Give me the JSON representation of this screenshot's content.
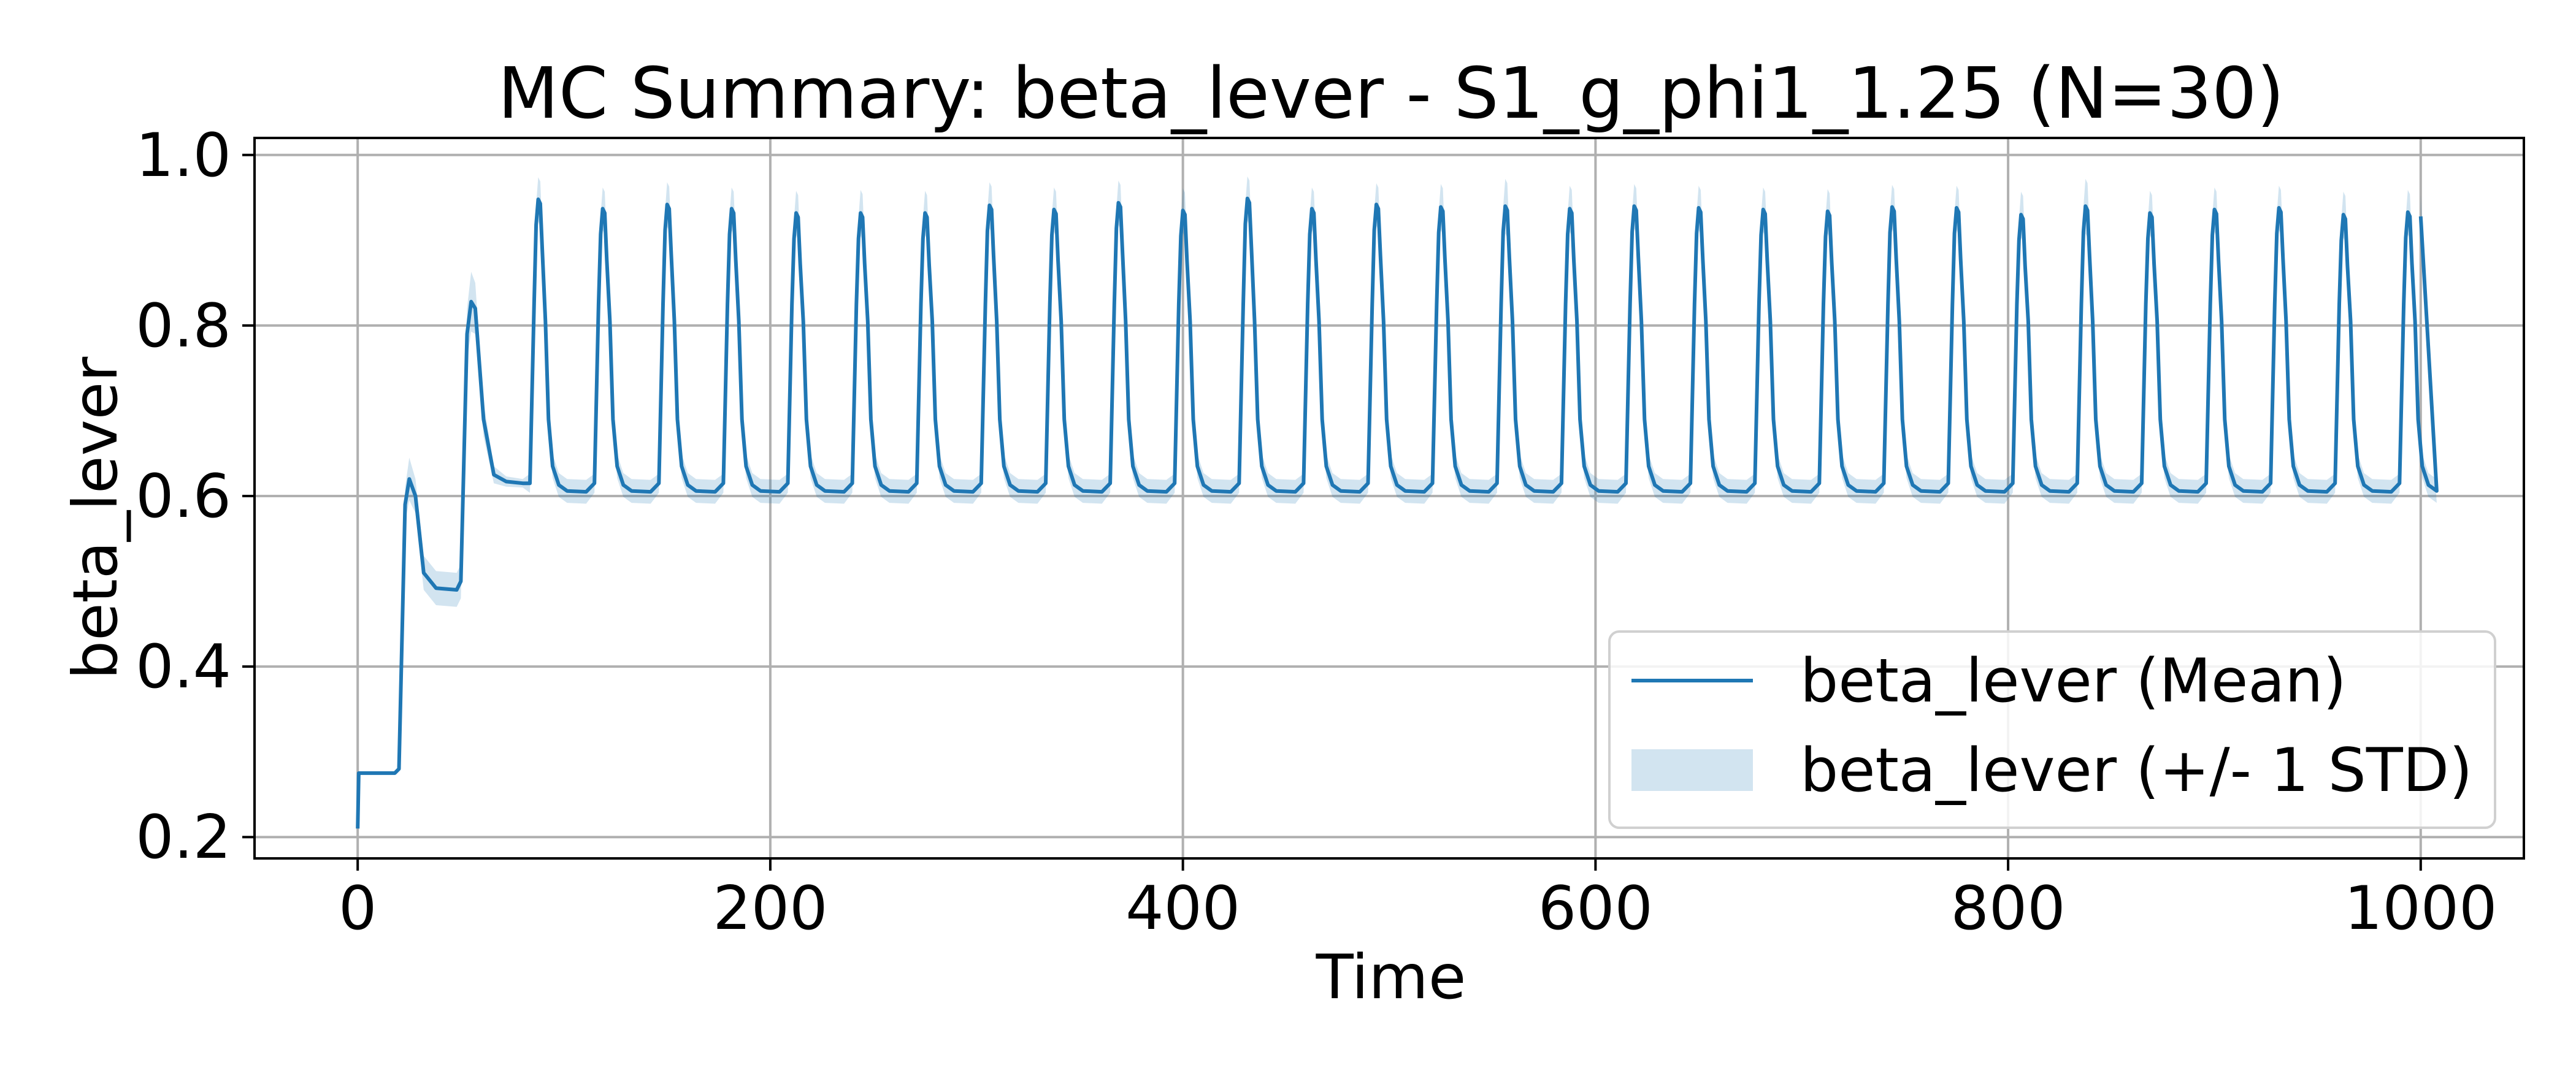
{
  "chart_data": {
    "type": "line",
    "title": "MC Summary: beta_lever - S1_g_phi1_1.25 (N=30)",
    "xlabel": "Time",
    "ylabel": "beta_lever",
    "xlim": [
      -50,
      1050
    ],
    "ylim": [
      0.175,
      1.02
    ],
    "x_ticks": [
      0,
      200,
      400,
      600,
      800,
      1000
    ],
    "y_ticks": [
      0.2,
      0.4,
      0.6,
      0.8,
      1.0
    ],
    "x_tick_labels": [
      "0",
      "200",
      "400",
      "600",
      "800",
      "1000"
    ],
    "y_tick_labels": [
      "0.2",
      "0.4",
      "0.6",
      "0.8",
      "1.0"
    ],
    "grid": true,
    "legend_position": "lower-right",
    "colors": {
      "mean": "#1f77b4",
      "band": "#1f77b4",
      "band_opacity": 0.2
    },
    "series": [
      {
        "name": "beta_lever (Mean)",
        "kind": "line"
      },
      {
        "name": "beta_lever (+/- 1 STD)",
        "kind": "band"
      }
    ],
    "initial_transient": [
      {
        "x": 0,
        "mean": 0.21,
        "std": 0.0
      },
      {
        "x": 0.5,
        "mean": 0.275,
        "std": 0.002
      },
      {
        "x": 18,
        "mean": 0.275,
        "std": 0.002
      },
      {
        "x": 20,
        "mean": 0.28,
        "std": 0.003
      },
      {
        "x": 23,
        "mean": 0.59,
        "std": 0.02
      },
      {
        "x": 25,
        "mean": 0.62,
        "std": 0.025
      },
      {
        "x": 28,
        "mean": 0.6,
        "std": 0.02
      },
      {
        "x": 32,
        "mean": 0.51,
        "std": 0.02
      },
      {
        "x": 38,
        "mean": 0.492,
        "std": 0.02
      },
      {
        "x": 48,
        "mean": 0.49,
        "std": 0.02
      },
      {
        "x": 50,
        "mean": 0.5,
        "std": 0.02
      },
      {
        "x": 53,
        "mean": 0.79,
        "std": 0.03
      },
      {
        "x": 55,
        "mean": 0.828,
        "std": 0.035
      },
      {
        "x": 57,
        "mean": 0.82,
        "std": 0.03
      },
      {
        "x": 61,
        "mean": 0.69,
        "std": 0.02
      },
      {
        "x": 66,
        "mean": 0.625,
        "std": 0.01
      },
      {
        "x": 72,
        "mean": 0.617,
        "std": 0.006
      },
      {
        "x": 80,
        "mean": 0.615,
        "std": 0.005
      }
    ],
    "pulse_template": {
      "baseline": 0.605,
      "baseline_std": 0.014,
      "period": 31.25,
      "peaks": [
        {
          "x": 87.5,
          "mean": 0.948,
          "std": 0.026
        },
        {
          "x": 118.75,
          "mean": 0.937,
          "std": 0.025
        },
        {
          "x": 150,
          "mean": 0.942,
          "std": 0.026
        },
        {
          "x": 181.25,
          "mean": 0.937,
          "std": 0.025
        },
        {
          "x": 212.5,
          "mean": 0.932,
          "std": 0.026
        },
        {
          "x": 243.75,
          "mean": 0.932,
          "std": 0.027
        },
        {
          "x": 275,
          "mean": 0.932,
          "std": 0.026
        },
        {
          "x": 306.25,
          "mean": 0.941,
          "std": 0.027
        },
        {
          "x": 337.5,
          "mean": 0.936,
          "std": 0.026
        },
        {
          "x": 368.75,
          "mean": 0.944,
          "std": 0.026
        },
        {
          "x": 400,
          "mean": 0.935,
          "std": 0.026
        },
        {
          "x": 431.25,
          "mean": 0.949,
          "std": 0.026
        },
        {
          "x": 462.5,
          "mean": 0.937,
          "std": 0.025
        },
        {
          "x": 493.75,
          "mean": 0.942,
          "std": 0.025
        },
        {
          "x": 525,
          "mean": 0.939,
          "std": 0.027
        },
        {
          "x": 556.25,
          "mean": 0.94,
          "std": 0.032
        },
        {
          "x": 587.5,
          "mean": 0.937,
          "std": 0.027
        },
        {
          "x": 618.75,
          "mean": 0.94,
          "std": 0.026
        },
        {
          "x": 650,
          "mean": 0.938,
          "std": 0.026
        },
        {
          "x": 681.25,
          "mean": 0.936,
          "std": 0.026
        },
        {
          "x": 712.5,
          "mean": 0.934,
          "std": 0.026
        },
        {
          "x": 743.75,
          "mean": 0.939,
          "std": 0.026
        },
        {
          "x": 775,
          "mean": 0.938,
          "std": 0.026
        },
        {
          "x": 806.25,
          "mean": 0.93,
          "std": 0.027
        },
        {
          "x": 837.5,
          "mean": 0.94,
          "std": 0.032
        },
        {
          "x": 868.75,
          "mean": 0.932,
          "std": 0.026
        },
        {
          "x": 900,
          "mean": 0.936,
          "std": 0.026
        },
        {
          "x": 931.25,
          "mean": 0.938,
          "std": 0.026
        },
        {
          "x": 962.5,
          "mean": 0.93,
          "std": 0.027
        },
        {
          "x": 993.75,
          "mean": 0.933,
          "std": 0.026
        }
      ],
      "end": {
        "x": 1000,
        "mean": 0.928,
        "std": 0.025
      }
    }
  }
}
